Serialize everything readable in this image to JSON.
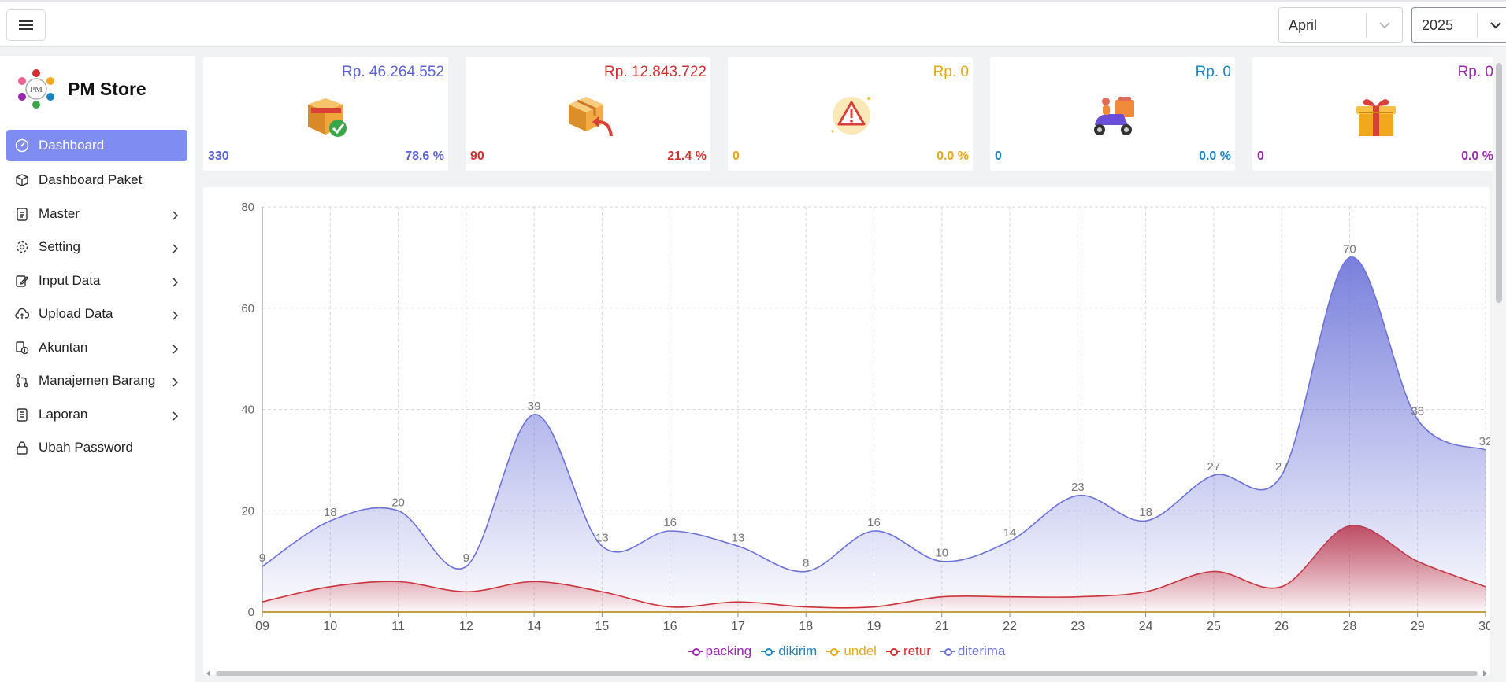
{
  "header": {
    "month": "April",
    "year": "2025"
  },
  "brand": {
    "name": "PM Store",
    "logo_text": "PM"
  },
  "sidebar": {
    "items": [
      {
        "label": "Dashboard",
        "icon": "gauge-icon",
        "active": true,
        "has_submenu": false
      },
      {
        "label": "Dashboard Paket",
        "icon": "box-icon",
        "active": false,
        "has_submenu": false
      },
      {
        "label": "Master",
        "icon": "clipboard-icon",
        "active": false,
        "has_submenu": true
      },
      {
        "label": "Setting",
        "icon": "gear-icon",
        "active": false,
        "has_submenu": true
      },
      {
        "label": "Input Data",
        "icon": "edit-icon",
        "active": false,
        "has_submenu": true
      },
      {
        "label": "Upload Data",
        "icon": "cloud-upload-icon",
        "active": false,
        "has_submenu": true
      },
      {
        "label": "Akuntan",
        "icon": "accounting-icon",
        "active": false,
        "has_submenu": true
      },
      {
        "label": "Manajemen Barang",
        "icon": "git-branch-icon",
        "active": false,
        "has_submenu": true
      },
      {
        "label": "Laporan",
        "icon": "report-icon",
        "active": false,
        "has_submenu": true
      },
      {
        "label": "Ubah Password",
        "icon": "lock-icon",
        "active": false,
        "has_submenu": false
      }
    ]
  },
  "cards": [
    {
      "key": "diterima",
      "amount": "Rp. 46.264.552",
      "count": "330",
      "percent": "78.6 %",
      "color": "#5b63d6",
      "icon": "box-check-icon"
    },
    {
      "key": "retur",
      "amount": "Rp. 12.843.722",
      "count": "90",
      "percent": "21.4 %",
      "color": "#d32f2f",
      "icon": "box-return-icon"
    },
    {
      "key": "undel",
      "amount": "Rp. 0",
      "count": "0",
      "percent": "0.0 %",
      "color": "#e6a817",
      "icon": "warning-icon"
    },
    {
      "key": "dikirim",
      "amount": "Rp. 0",
      "count": "0",
      "percent": "0.0 %",
      "color": "#1b86c4",
      "icon": "delivery-scooter-icon"
    },
    {
      "key": "packing",
      "amount": "Rp. 0",
      "count": "0",
      "percent": "0.0 %",
      "color": "#9b27b0",
      "icon": "gift-icon"
    }
  ],
  "chart_data": {
    "type": "area",
    "categories": [
      "09",
      "10",
      "11",
      "12",
      "14",
      "15",
      "16",
      "17",
      "18",
      "19",
      "21",
      "22",
      "23",
      "24",
      "25",
      "26",
      "28",
      "29",
      "30"
    ],
    "ylim": [
      0,
      80
    ],
    "yticks": [
      0,
      20,
      40,
      60,
      80
    ],
    "grid": true,
    "legend_position": "bottom",
    "series": [
      {
        "name": "packing",
        "color": "#9b27b0",
        "values": [
          0,
          0,
          0,
          0,
          0,
          0,
          0,
          0,
          0,
          0,
          0,
          0,
          0,
          0,
          0,
          0,
          0,
          0,
          0
        ],
        "labels": false
      },
      {
        "name": "dikirim",
        "color": "#1b86c4",
        "values": [
          0,
          0,
          0,
          0,
          0,
          0,
          0,
          0,
          0,
          0,
          0,
          0,
          0,
          0,
          0,
          0,
          0,
          0,
          0
        ],
        "labels": false
      },
      {
        "name": "undel",
        "color": "#e6a817",
        "values": [
          0,
          0,
          0,
          0,
          0,
          0,
          0,
          0,
          0,
          0,
          0,
          0,
          0,
          0,
          0,
          0,
          0,
          0,
          0
        ],
        "labels": false
      },
      {
        "name": "retur",
        "color": "#d32f2f",
        "values": [
          2,
          5,
          6,
          4,
          6,
          4,
          1,
          2,
          1,
          1,
          3,
          3,
          3,
          4,
          8,
          5,
          17,
          10,
          5
        ],
        "labels": false
      },
      {
        "name": "diterima",
        "color": "#6b72d8",
        "values": [
          9,
          18,
          20,
          9,
          39,
          13,
          16,
          13,
          8,
          16,
          10,
          14,
          23,
          18,
          27,
          27,
          70,
          38,
          32
        ],
        "labels": true
      }
    ]
  }
}
